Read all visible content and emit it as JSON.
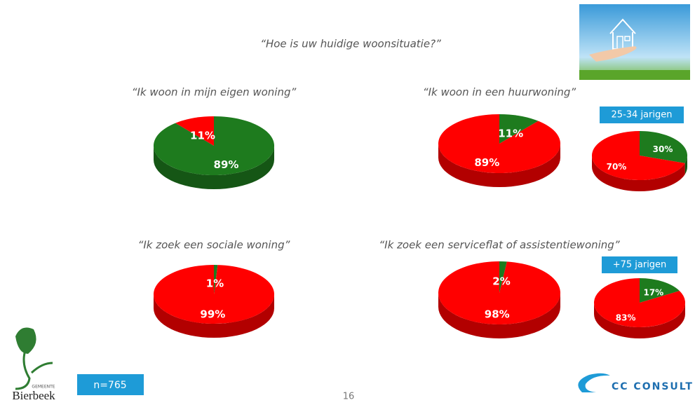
{
  "slide": {
    "title": "“Hoe is uw huidige woonsituatie?”",
    "sample": "n=765",
    "page": "16",
    "municipality_label": "GEMEENTE",
    "municipality": "Bierbeek",
    "brand": "CC CONSULT"
  },
  "chart_data": [
    {
      "type": "pie",
      "title": "“Ik woon in mijn eigen woning”",
      "values": [
        89,
        11
      ],
      "value_labels": [
        "89%",
        "11%"
      ],
      "colors": [
        "#1e7b1e",
        "#ff0000"
      ]
    },
    {
      "type": "pie",
      "title": "“Ik woon in een huurwoning”",
      "values": [
        11,
        89
      ],
      "value_labels": [
        "11%",
        "89%"
      ],
      "colors": [
        "#1e7b1e",
        "#ff0000"
      ]
    },
    {
      "type": "pie",
      "subtitle": "25-34 jarigen",
      "values": [
        30,
        70
      ],
      "value_labels": [
        "30%",
        "70%"
      ],
      "colors": [
        "#1e7b1e",
        "#ff0000"
      ]
    },
    {
      "type": "pie",
      "title": "“Ik zoek een sociale woning”",
      "values": [
        1,
        99
      ],
      "value_labels": [
        "1%",
        "99%"
      ],
      "colors": [
        "#1e7b1e",
        "#ff0000"
      ]
    },
    {
      "type": "pie",
      "title": "“Ik zoek een serviceflat of assistentiewoning”",
      "values": [
        2,
        98
      ],
      "value_labels": [
        "2%",
        "98%"
      ],
      "colors": [
        "#1e7b1e",
        "#ff0000"
      ]
    },
    {
      "type": "pie",
      "subtitle": "+75 jarigen",
      "values": [
        17,
        83
      ],
      "value_labels": [
        "17%",
        "83%"
      ],
      "colors": [
        "#1e7b1e",
        "#ff0000"
      ]
    }
  ]
}
